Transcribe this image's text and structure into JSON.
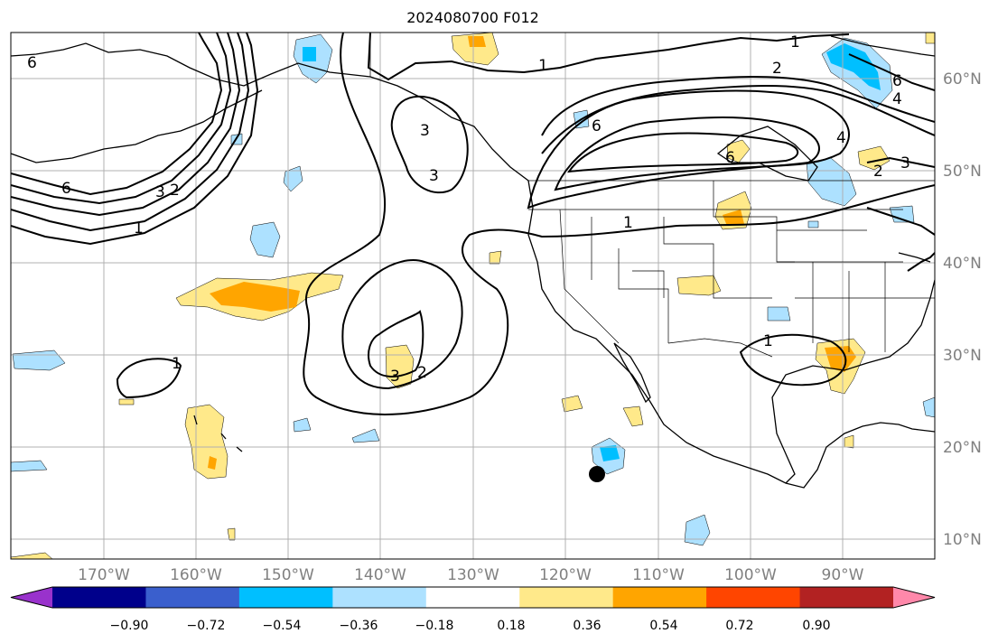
{
  "title": "2024080700 F012",
  "lat_labels": [
    "60°N",
    "50°N",
    "40°N",
    "30°N",
    "20°N",
    "10°N"
  ],
  "lon_labels": [
    "170°W",
    "160°W",
    "150°W",
    "140°W",
    "130°W",
    "120°W",
    "110°W",
    "100°W",
    "90°W"
  ],
  "colorbar": {
    "colors": [
      "#9932CC",
      "#00008B",
      "#3A5FCD",
      "#00BFFF",
      "#ADE1FF",
      "#FFFFFF",
      "#FFE98A",
      "#FFA500",
      "#FF4500",
      "#B22222",
      "#FF88AA"
    ],
    "tick_labels": [
      "−0.90",
      "−0.72",
      "−0.54",
      "−0.36",
      "−0.18",
      "0.18",
      "0.36",
      "0.54",
      "0.72",
      "0.90"
    ]
  },
  "contour_labels": [
    "6",
    "6",
    "3",
    "2",
    "1",
    "1",
    "2",
    "6",
    "4",
    "6",
    "3",
    "3",
    "6",
    "2",
    "3",
    "4",
    "1",
    "1",
    "1",
    "3",
    "2",
    "1"
  ],
  "marker": "storm-center-dot"
}
